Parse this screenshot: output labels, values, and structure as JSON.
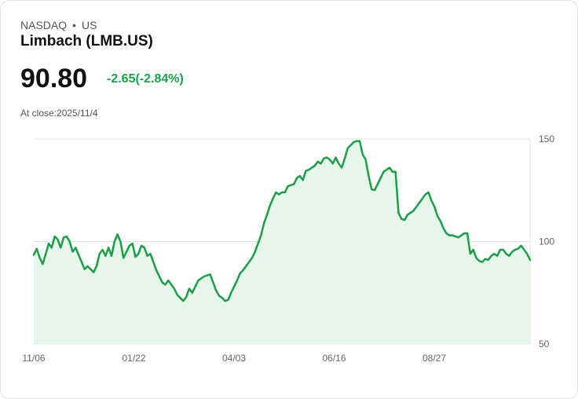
{
  "header": {
    "exchange": "NASDAQ",
    "separator": "•",
    "market": "US",
    "name": "Limbach (LMB.US)",
    "price": "90.80",
    "change": "-2.65(-2.84%)",
    "change_color": "#16a34a",
    "close_label": "At close:",
    "close_date": "2025/11/4"
  },
  "colors": {
    "line": "#1a9e46",
    "area": "#e6f6eb",
    "grid": "#e2e2e2"
  },
  "chart_data": {
    "type": "area",
    "x_ticks": [
      "11/06",
      "01/22",
      "04/03",
      "06/16",
      "08/27"
    ],
    "y_ticks": [
      150,
      100,
      50
    ],
    "ylim": [
      50,
      150
    ],
    "grid": "horizontal",
    "values": [
      93.5,
      96.5,
      92,
      89,
      94,
      99,
      97,
      102.5,
      101,
      97,
      102,
      102.5,
      100,
      95,
      97,
      93.5,
      90,
      86.5,
      88,
      86.5,
      85,
      88,
      94,
      96,
      93,
      97,
      93,
      100,
      103.5,
      100,
      92,
      95,
      98,
      99,
      92.5,
      94,
      98,
      97,
      93,
      94,
      90,
      86,
      83,
      80,
      79,
      81,
      79,
      77,
      74,
      72.5,
      71,
      73,
      77,
      75,
      78,
      81,
      82,
      83,
      83.5,
      84,
      80,
      76,
      73.5,
      72.5,
      71,
      71.5,
      75,
      78,
      81,
      84.5,
      86,
      88,
      90,
      92,
      95,
      99,
      103,
      109,
      113,
      117.5,
      121,
      124,
      123,
      124,
      124,
      127,
      127.5,
      128,
      131,
      132,
      130,
      134.5,
      135,
      136,
      137,
      139,
      138,
      140.5,
      141,
      140,
      138,
      141,
      138,
      136,
      140.5,
      145.5,
      147,
      148.5,
      149,
      149,
      142.5,
      140,
      132,
      125.5,
      125,
      128,
      131,
      134,
      135,
      136,
      134,
      134,
      114,
      111,
      110.5,
      113,
      114,
      115,
      117,
      119,
      121,
      123,
      124,
      120,
      117,
      112.5,
      110,
      106.5,
      104,
      103,
      103,
      102.5,
      102,
      103,
      104,
      104,
      94,
      96,
      92,
      90.5,
      90,
      91.5,
      91,
      93,
      94,
      93,
      96,
      96,
      94,
      93,
      95,
      96,
      96.5,
      98,
      96,
      94,
      91
    ]
  }
}
